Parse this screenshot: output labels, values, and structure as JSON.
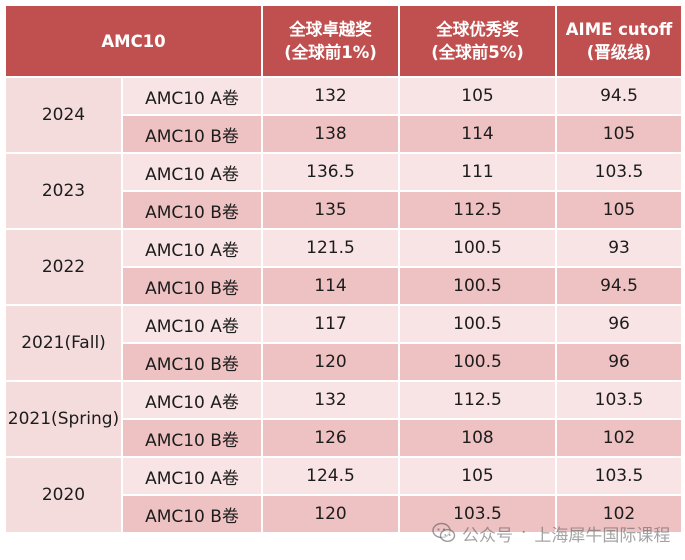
{
  "header": {
    "title": "AMC10",
    "col1_line1": "全球卓越奖",
    "col1_line2": "(全球前1%)",
    "col2_line1": "全球优秀奖",
    "col2_line2": "(全球前5%)",
    "col3_line1": "AIME cutoff",
    "col3_line2": "(晋级线)"
  },
  "groups": [
    {
      "year": "2024",
      "rows": [
        {
          "paper": "AMC10 A卷",
          "top1": "132",
          "top5": "105",
          "aime": "94.5"
        },
        {
          "paper": "AMC10 B卷",
          "top1": "138",
          "top5": "114",
          "aime": "105"
        }
      ]
    },
    {
      "year": "2023",
      "rows": [
        {
          "paper": "AMC10 A卷",
          "top1": "136.5",
          "top5": "111",
          "aime": "103.5"
        },
        {
          "paper": "AMC10 B卷",
          "top1": "135",
          "top5": "112.5",
          "aime": "105"
        }
      ]
    },
    {
      "year": "2022",
      "rows": [
        {
          "paper": "AMC10 A卷",
          "top1": "121.5",
          "top5": "100.5",
          "aime": "93"
        },
        {
          "paper": "AMC10 B卷",
          "top1": "114",
          "top5": "100.5",
          "aime": "94.5"
        }
      ]
    },
    {
      "year": "2021(Fall)",
      "rows": [
        {
          "paper": "AMC10 A卷",
          "top1": "117",
          "top5": "100.5",
          "aime": "96"
        },
        {
          "paper": "AMC10 B卷",
          "top1": "120",
          "top5": "100.5",
          "aime": "96"
        }
      ]
    },
    {
      "year": "2021(Spring)",
      "rows": [
        {
          "paper": "AMC10 A卷",
          "top1": "132",
          "top5": "112.5",
          "aime": "103.5"
        },
        {
          "paper": "AMC10 B卷",
          "top1": "126",
          "top5": "108",
          "aime": "102"
        }
      ]
    },
    {
      "year": "2020",
      "rows": [
        {
          "paper": "AMC10 A卷",
          "top1": "124.5",
          "top5": "105",
          "aime": "103.5"
        },
        {
          "paper": "AMC10 B卷",
          "top1": "120",
          "top5": "103.5",
          "aime": "102"
        }
      ]
    }
  ],
  "watermark": {
    "icon": "wechat-icon",
    "prefix": "公众号",
    "name": "上海犀牛国际课程"
  },
  "colors": {
    "header_bg": "#c0504f",
    "row_a_bg": "#f8e4e4",
    "row_b_bg": "#eec2c2",
    "year_bg": "#f4dcdc"
  }
}
